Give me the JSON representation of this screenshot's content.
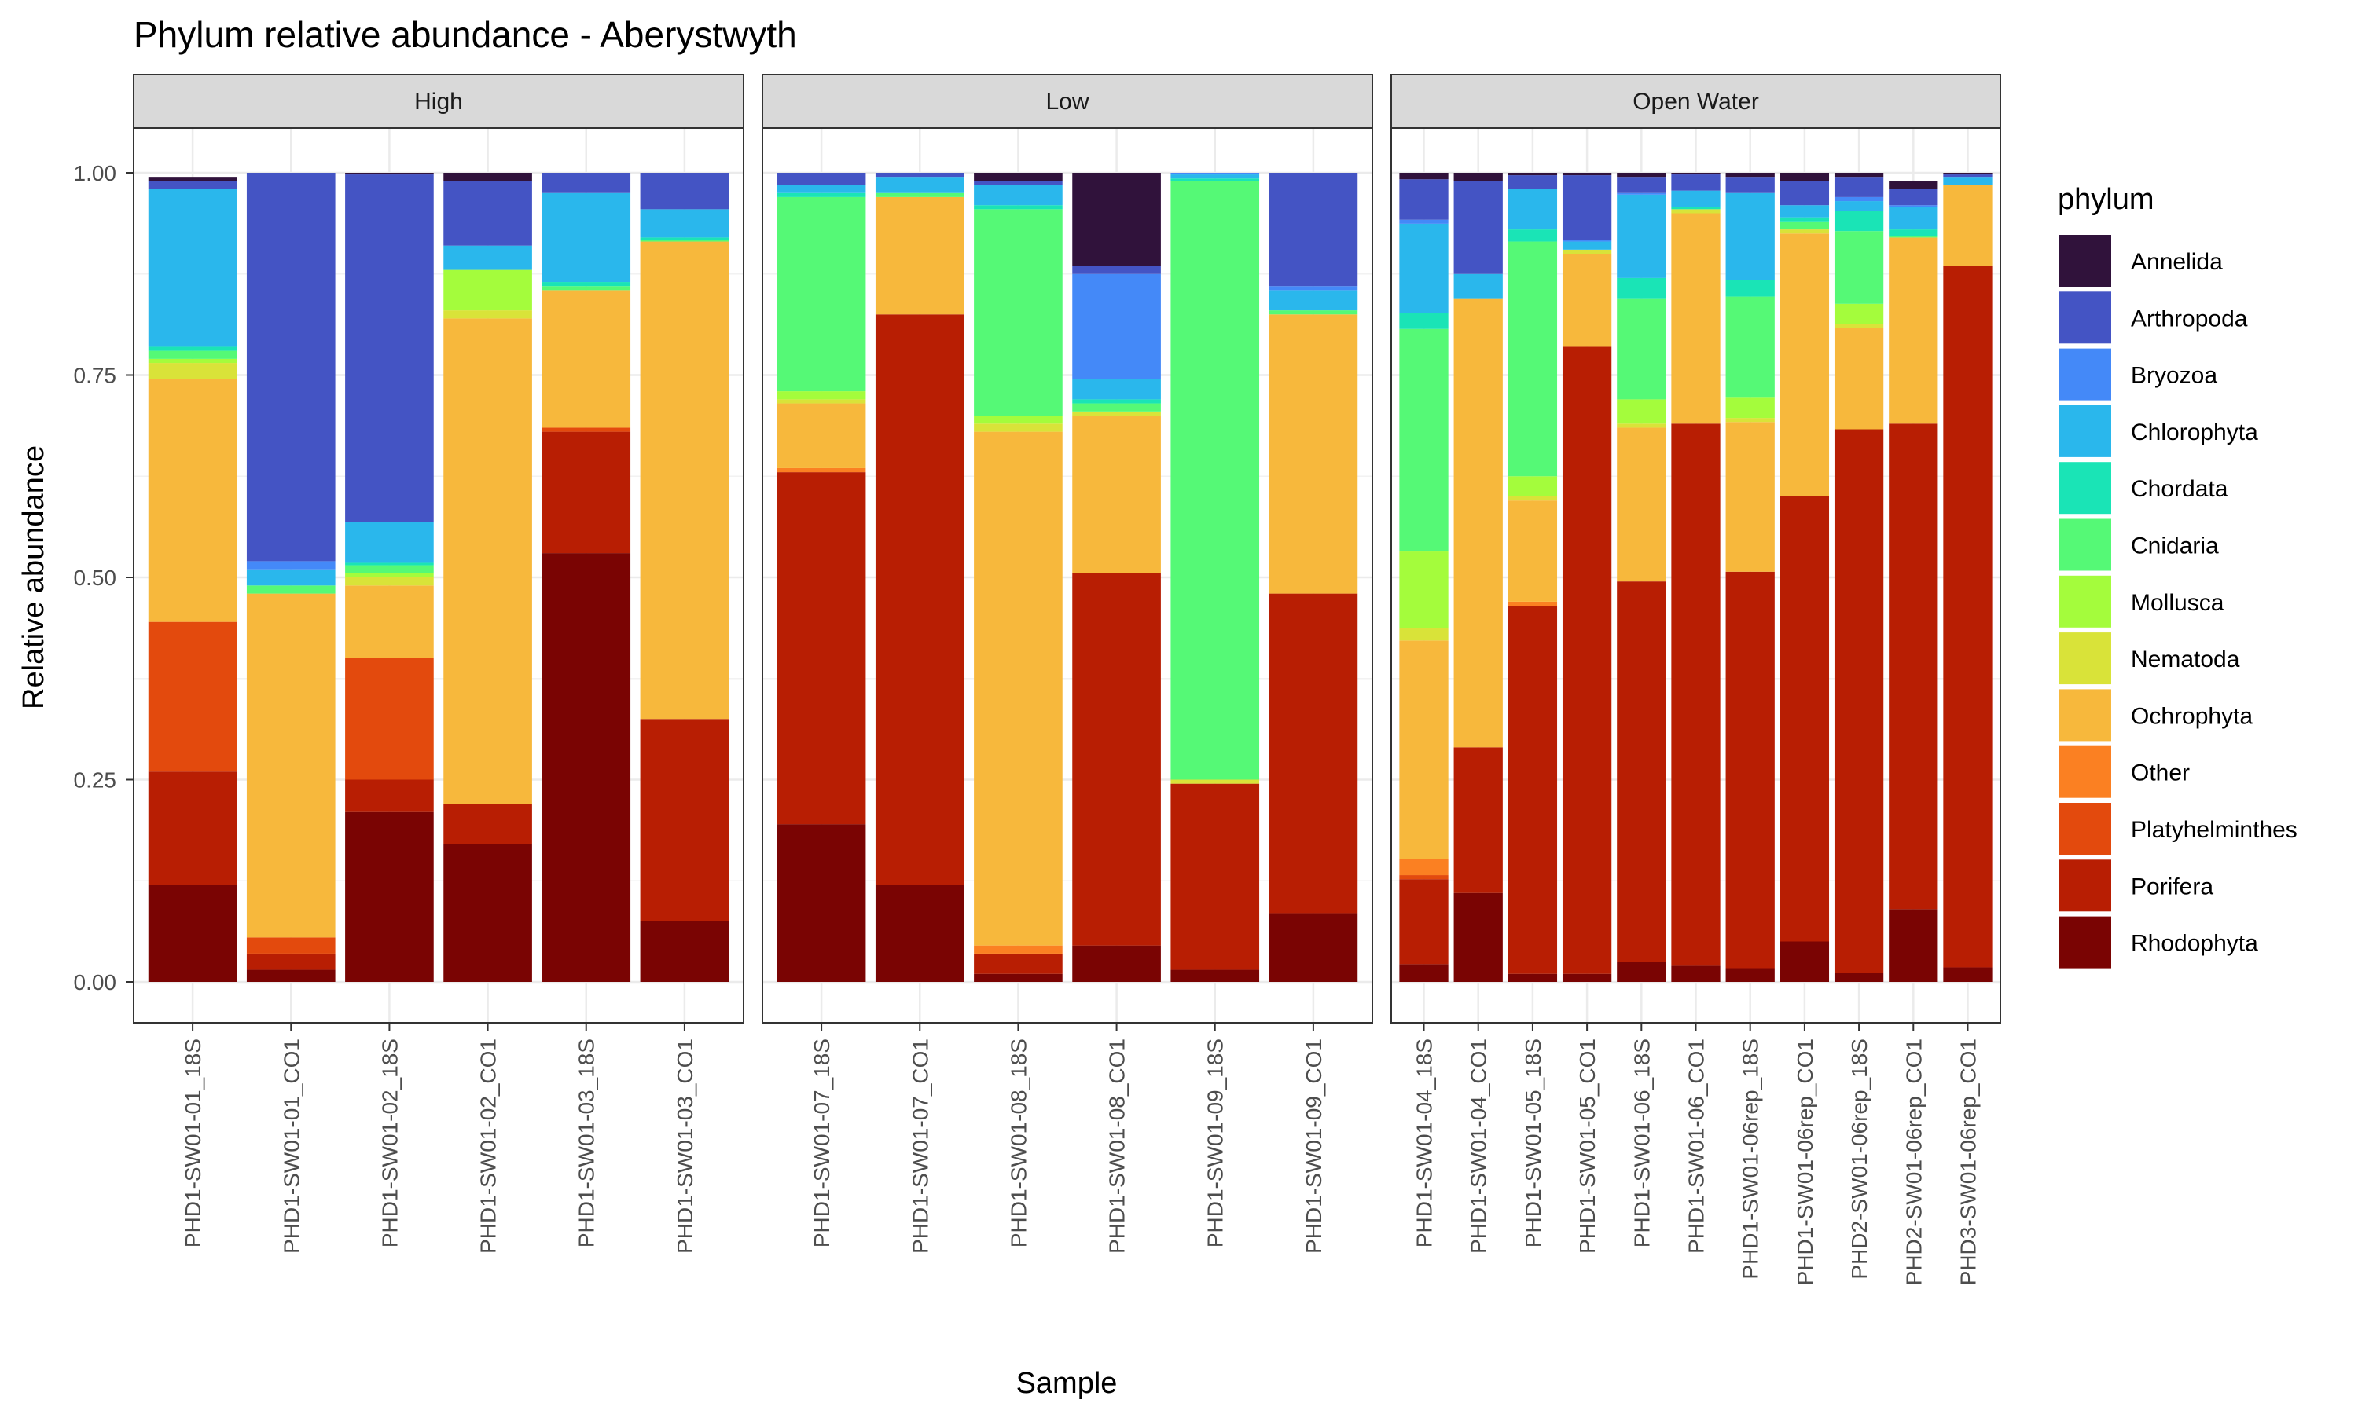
{
  "chart_data": {
    "type": "bar",
    "stacked": true,
    "title": "Phylum relative abundance - Aberystwyth",
    "xlabel": "Sample",
    "ylabel": "Relative abundance",
    "ylim": [
      0,
      1
    ],
    "y_ticks": [
      "0.00",
      "0.25",
      "0.50",
      "0.75",
      "1.00"
    ],
    "grid": true,
    "legend": {
      "title": "phylum",
      "position": "right",
      "entries": [
        {
          "name": "Annelida",
          "color": "#30123b"
        },
        {
          "name": "Arthropoda",
          "color": "#4454c4"
        },
        {
          "name": "Bryozoa",
          "color": "#4489f8"
        },
        {
          "name": "Chlorophyta",
          "color": "#2ab7ec"
        },
        {
          "name": "Chordata",
          "color": "#1ae4b6"
        },
        {
          "name": "Cnidaria",
          "color": "#55f976"
        },
        {
          "name": "Mollusca",
          "color": "#a4fc3c"
        },
        {
          "name": "Nematoda",
          "color": "#d9e339"
        },
        {
          "name": "Ochrophyta",
          "color": "#f7b83c"
        },
        {
          "name": "Other",
          "color": "#fb8022"
        },
        {
          "name": "Platyhelminthes",
          "color": "#e34a0d"
        },
        {
          "name": "Porifera",
          "color": "#b81e03"
        },
        {
          "name": "Rhodophyta",
          "color": "#7a0403"
        }
      ]
    },
    "series_order": [
      "Annelida",
      "Arthropoda",
      "Bryozoa",
      "Chlorophyta",
      "Chordata",
      "Cnidaria",
      "Mollusca",
      "Nematoda",
      "Ochrophyta",
      "Other",
      "Platyhelminthes",
      "Porifera",
      "Rhodophyta"
    ],
    "facets": [
      {
        "name": "High",
        "categories": [
          "PHD1-SW01-01_18S",
          "PHD1-SW01-01_CO1",
          "PHD1-SW01-02_18S",
          "PHD1-SW01-02_CO1",
          "PHD1-SW01-03_18S",
          "PHD1-SW01-03_CO1"
        ],
        "values": [
          [
            0.005,
            0.01,
            0,
            0.195,
            0.005,
            0.01,
            0.005,
            0.02,
            0.3,
            0,
            0.185,
            0.14,
            0.12
          ],
          [
            0,
            0.48,
            0.01,
            0.02,
            0,
            0.01,
            0,
            0,
            0.425,
            0,
            0.02,
            0.02,
            0.015
          ],
          [
            0.002,
            0.43,
            0,
            0.05,
            0.003,
            0.01,
            0.005,
            0.01,
            0.09,
            0,
            0.15,
            0.04,
            0.21
          ],
          [
            0.01,
            0.08,
            0,
            0.03,
            0,
            0,
            0.05,
            0.01,
            0.6,
            0,
            0,
            0.05,
            0.17
          ],
          [
            0,
            0.025,
            0,
            0.11,
            0.005,
            0.005,
            0,
            0,
            0.17,
            0,
            0.005,
            0.15,
            0.53
          ],
          [
            0,
            0.045,
            0,
            0.035,
            0.003,
            0.002,
            0,
            0,
            0.59,
            0,
            0,
            0.25,
            0.075
          ]
        ]
      },
      {
        "name": "Low",
        "categories": [
          "PHD1-SW01-07_18S",
          "PHD1-SW01-07_CO1",
          "PHD1-SW01-08_18S",
          "PHD1-SW01-08_CO1",
          "PHD1-SW01-09_18S",
          "PHD1-SW01-09_CO1"
        ],
        "values": [
          [
            0,
            0.015,
            0,
            0.01,
            0.005,
            0.24,
            0.01,
            0.005,
            0.08,
            0.005,
            0,
            0.435,
            0.195
          ],
          [
            0,
            0.005,
            0,
            0.02,
            0,
            0.005,
            0,
            0,
            0.145,
            0,
            0,
            0.705,
            0.12
          ],
          [
            0.01,
            0.005,
            0,
            0.025,
            0.005,
            0.255,
            0.01,
            0.01,
            0.635,
            0.01,
            0,
            0.025,
            0.01
          ],
          [
            0.115,
            0.01,
            0.13,
            0.025,
            0.005,
            0.01,
            0,
            0.005,
            0.195,
            0,
            0,
            0.46,
            0.045
          ],
          [
            0,
            0,
            0.002,
            0.005,
            0.003,
            0.74,
            0,
            0.005,
            0,
            0,
            0,
            0.23,
            0.015
          ],
          [
            0,
            0.14,
            0.005,
            0.025,
            0,
            0.005,
            0,
            0,
            0.345,
            0,
            0,
            0.395,
            0.085
          ]
        ]
      },
      {
        "name": "Open Water",
        "categories": [
          "PHD1-SW01-04_18S",
          "PHD1-SW01-04_CO1",
          "PHD1-SW01-05_18S",
          "PHD1-SW01-05_CO1",
          "PHD1-SW01-06_18S",
          "PHD1-SW01-06_CO1",
          "PHD1-SW01-06rep_18S",
          "PHD1-SW01-06rep_CO1",
          "PHD2-SW01-06rep_18S",
          "PHD2-SW01-06rep_CO1",
          "PHD3-SW01-06rep_CO1"
        ],
        "values": [
          [
            0.008,
            0.05,
            0.005,
            0.11,
            0.02,
            0.275,
            0.095,
            0.015,
            0.27,
            0.02,
            0.005,
            0.105,
            0.022
          ],
          [
            0.01,
            0.115,
            0,
            0.03,
            0,
            0,
            0,
            0,
            0.555,
            0,
            0,
            0.18,
            0.11
          ],
          [
            0.003,
            0.017,
            0,
            0.05,
            0.015,
            0.29,
            0.025,
            0.005,
            0.125,
            0.005,
            0,
            0.455,
            0.01
          ],
          [
            0.003,
            0.08,
            0.002,
            0.01,
            0,
            0,
            0,
            0.005,
            0.115,
            0,
            0,
            0.775,
            0.01
          ],
          [
            0.005,
            0.02,
            0.002,
            0.103,
            0.025,
            0.125,
            0.03,
            0.005,
            0.19,
            0,
            0,
            0.47,
            0.025
          ],
          [
            0.002,
            0.02,
            0,
            0.02,
            0.003,
            0,
            0,
            0.005,
            0.26,
            0,
            0,
            0.67,
            0.02
          ],
          [
            0.005,
            0.02,
            0,
            0.108,
            0.02,
            0.125,
            0.025,
            0.005,
            0.185,
            0,
            0,
            0.49,
            0.017
          ],
          [
            0.01,
            0.03,
            0,
            0.015,
            0.005,
            0.01,
            0,
            0.005,
            0.325,
            0,
            0,
            0.55,
            0.05
          ],
          [
            0.005,
            0.025,
            0.005,
            0.012,
            0.025,
            0.09,
            0.025,
            0.005,
            0.125,
            0,
            0,
            0.672,
            0.011
          ],
          [
            0.01,
            0.02,
            0.002,
            0.028,
            0.008,
            0.002,
            0,
            0,
            0.23,
            0,
            0,
            0.6,
            0.09
          ],
          [
            0.002,
            0.003,
            0,
            0.01,
            0,
            0,
            0,
            0,
            0.1,
            0,
            0,
            0.867,
            0.018
          ]
        ]
      }
    ]
  }
}
